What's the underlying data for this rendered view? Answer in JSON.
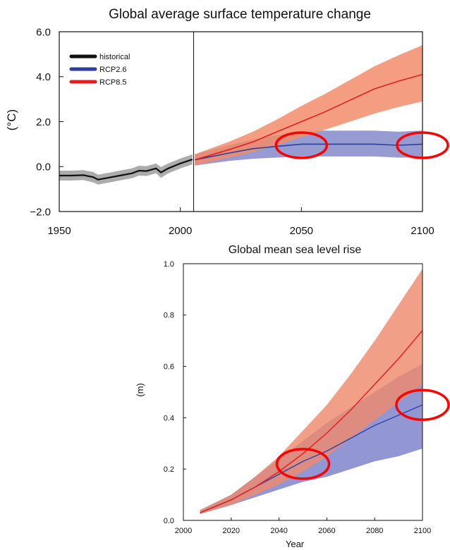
{
  "chart_data": [
    {
      "type": "area",
      "title": "Global average surface temperature change",
      "xlabel": "",
      "ylabel": "(°C)",
      "xlim": [
        1950,
        2100
      ],
      "ylim": [
        -2.0,
        6.0
      ],
      "x_ticks": [
        "1950",
        "2000",
        "2050",
        "2100"
      ],
      "x_tick_values": [
        1950,
        2000,
        2050,
        2100
      ],
      "y_ticks": [
        "6.0",
        "4.0",
        "2.0",
        "0.0",
        "−2.0"
      ],
      "y_tick_values": [
        6,
        4,
        2,
        0,
        -2
      ],
      "vertical_marker_x": 2005.5,
      "legend_position": "top-left",
      "series": [
        {
          "name": "historical",
          "color": "#111111",
          "band_color": "#9a9a9a",
          "x": [
            1950,
            1955,
            1960,
            1964,
            1966,
            1970,
            1975,
            1980,
            1983,
            1986,
            1990,
            1992,
            1995,
            2000,
            2005
          ],
          "mean": [
            -0.4,
            -0.4,
            -0.38,
            -0.47,
            -0.58,
            -0.5,
            -0.4,
            -0.3,
            -0.18,
            -0.2,
            -0.08,
            -0.26,
            -0.08,
            0.14,
            0.32
          ],
          "low": [
            -0.62,
            -0.62,
            -0.6,
            -0.7,
            -0.8,
            -0.72,
            -0.62,
            -0.52,
            -0.4,
            -0.42,
            -0.3,
            -0.5,
            -0.3,
            -0.08,
            0.1
          ],
          "high": [
            -0.18,
            -0.18,
            -0.16,
            -0.24,
            -0.36,
            -0.28,
            -0.18,
            -0.08,
            0.04,
            0.02,
            0.14,
            -0.02,
            0.14,
            0.36,
            0.54
          ]
        },
        {
          "name": "RCP2.6",
          "color": "#2d3f9a",
          "band_color": "#7f85c8",
          "x": [
            2006,
            2020,
            2030,
            2040,
            2050,
            2060,
            2070,
            2080,
            2090,
            2100
          ],
          "mean": [
            0.3,
            0.6,
            0.8,
            0.9,
            1.0,
            1.0,
            1.0,
            1.0,
            0.95,
            1.0
          ],
          "low": [
            0.05,
            0.25,
            0.35,
            0.4,
            0.45,
            0.45,
            0.45,
            0.45,
            0.4,
            0.4
          ],
          "high": [
            0.55,
            0.95,
            1.2,
            1.4,
            1.55,
            1.6,
            1.6,
            1.6,
            1.55,
            1.6
          ]
        },
        {
          "name": "RCP8.5",
          "color": "#e02020",
          "band_color": "#f28c6a",
          "x": [
            2006,
            2020,
            2030,
            2040,
            2050,
            2060,
            2070,
            2080,
            2090,
            2100
          ],
          "mean": [
            0.3,
            0.75,
            1.1,
            1.55,
            2.0,
            2.45,
            2.95,
            3.45,
            3.8,
            4.1
          ],
          "low": [
            0.05,
            0.4,
            0.65,
            0.95,
            1.3,
            1.65,
            2.0,
            2.35,
            2.65,
            2.9
          ],
          "high": [
            0.55,
            1.1,
            1.55,
            2.1,
            2.7,
            3.25,
            3.85,
            4.45,
            4.95,
            5.4
          ]
        }
      ],
      "highlight_ellipses": [
        {
          "x": 2050,
          "y": 0.95
        },
        {
          "x": 2100,
          "y": 0.95
        }
      ]
    },
    {
      "type": "area",
      "title": "Global mean sea level rise",
      "xlabel": "Year",
      "ylabel": "(m)",
      "xlim": [
        2000,
        2100
      ],
      "ylim": [
        0.0,
        1.0
      ],
      "x_ticks": [
        "2000",
        "2020",
        "2040",
        "2060",
        "2080",
        "2100"
      ],
      "x_tick_values": [
        2000,
        2020,
        2040,
        2060,
        2080,
        2100
      ],
      "y_ticks": [
        "1.0",
        "0.8",
        "0.6",
        "0.4",
        "0.2",
        "0.0"
      ],
      "y_tick_values": [
        1.0,
        0.8,
        0.6,
        0.4,
        0.2,
        0.0
      ],
      "series": [
        {
          "name": "",
          "color": "#3a4aa8",
          "band_color": "#7a80c9",
          "x": [
            2007,
            2020,
            2030,
            2040,
            2050,
            2060,
            2070,
            2080,
            2090,
            2100
          ],
          "mean": [
            0.03,
            0.08,
            0.13,
            0.18,
            0.23,
            0.27,
            0.32,
            0.37,
            0.41,
            0.45
          ],
          "low": [
            0.025,
            0.06,
            0.09,
            0.12,
            0.15,
            0.17,
            0.2,
            0.23,
            0.25,
            0.28
          ],
          "high": [
            0.04,
            0.1,
            0.17,
            0.24,
            0.31,
            0.38,
            0.44,
            0.5,
            0.56,
            0.61
          ]
        },
        {
          "name": "",
          "color": "#e02828",
          "band_color": "#ee8a6c",
          "x": [
            2007,
            2020,
            2030,
            2040,
            2050,
            2060,
            2070,
            2080,
            2090,
            2100
          ],
          "mean": [
            0.03,
            0.08,
            0.13,
            0.19,
            0.26,
            0.34,
            0.43,
            0.53,
            0.63,
            0.74
          ],
          "low": [
            0.025,
            0.06,
            0.1,
            0.14,
            0.19,
            0.25,
            0.32,
            0.39,
            0.46,
            0.53
          ],
          "high": [
            0.04,
            0.1,
            0.17,
            0.25,
            0.35,
            0.45,
            0.57,
            0.7,
            0.84,
            0.98
          ]
        }
      ],
      "highlight_ellipses": [
        {
          "x": 2050,
          "y": 0.22
        },
        {
          "x": 2100,
          "y": 0.45
        }
      ]
    }
  ],
  "colors": {
    "highlight": "#ff0000",
    "axis": "#111111"
  }
}
